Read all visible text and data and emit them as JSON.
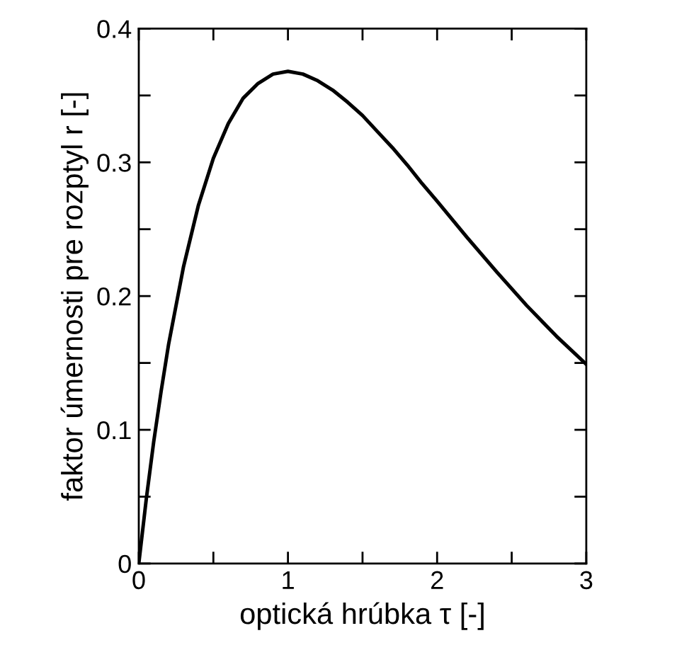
{
  "chart_data": {
    "type": "line",
    "xlabel": "optická hrúbka τ [-]",
    "ylabel": "faktor úmernosti pre rozptyl r [-]",
    "x": [
      0,
      0.05,
      0.1,
      0.15,
      0.2,
      0.3,
      0.4,
      0.5,
      0.6,
      0.7,
      0.8,
      0.9,
      1.0,
      1.1,
      1.2,
      1.3,
      1.4,
      1.5,
      1.6,
      1.7,
      1.8,
      1.9,
      2.0,
      2.2,
      2.4,
      2.6,
      2.8,
      3.0
    ],
    "series": [
      {
        "color": "#000000",
        "values": [
          0,
          0.048,
          0.091,
          0.129,
          0.164,
          0.222,
          0.268,
          0.303,
          0.329,
          0.348,
          0.359,
          0.366,
          0.368,
          0.366,
          0.361,
          0.354,
          0.345,
          0.335,
          0.323,
          0.311,
          0.298,
          0.284,
          0.271,
          0.244,
          0.218,
          0.193,
          0.17,
          0.149
        ]
      }
    ],
    "xlim": [
      0,
      3
    ],
    "ylim": [
      0,
      0.4
    ],
    "xticks": [
      0,
      {
        "value": 0.5,
        "label": null
      },
      1,
      {
        "value": 1.5,
        "label": null
      },
      2,
      {
        "value": 2.5,
        "label": null
      },
      3
    ],
    "yticks": [
      0,
      {
        "value": 0.05,
        "label": null
      },
      0.1,
      {
        "value": 0.15,
        "label": null
      },
      0.2,
      {
        "value": 0.25,
        "label": null
      },
      0.3,
      {
        "value": 0.35,
        "label": null
      },
      0.4
    ],
    "grid": false,
    "legend": false,
    "marker": "none",
    "line_style": "solid"
  }
}
